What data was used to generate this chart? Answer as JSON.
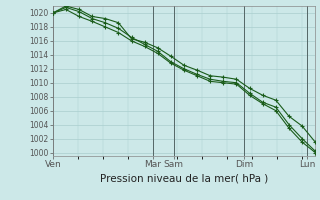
{
  "title": "",
  "xlabel": "Pression niveau de la mer( hPa )",
  "ylabel": "",
  "bg_color": "#cce8e8",
  "grid_color": "#aacece",
  "line_color": "#1a5c1a",
  "vline_color": "#556666",
  "ylim": [
    999.5,
    1021
  ],
  "yticks": [
    1000,
    1002,
    1004,
    1006,
    1008,
    1010,
    1012,
    1014,
    1016,
    1018,
    1020
  ],
  "xtick_labels": [
    "Ven",
    "Mar",
    "Sam",
    "Dim",
    "Lun"
  ],
  "xtick_positions": [
    0.0,
    0.38,
    0.46,
    0.73,
    0.97
  ],
  "vline_positions": [
    0.0,
    0.38,
    0.46,
    0.73,
    0.97
  ],
  "n_points": 21,
  "series": [
    [
      1020.0,
      1021.0,
      1020.5,
      1019.5,
      1019.2,
      1018.6,
      1016.3,
      1015.8,
      1015.0,
      1013.8,
      1012.5,
      1011.8,
      1011.0,
      1010.8,
      1010.5,
      1009.2,
      1008.2,
      1007.5,
      1005.2,
      1003.8,
      1001.5
    ],
    [
      1020.0,
      1020.8,
      1020.2,
      1019.2,
      1018.6,
      1017.8,
      1016.5,
      1015.5,
      1014.5,
      1013.0,
      1012.0,
      1011.2,
      1010.5,
      1010.2,
      1010.0,
      1008.5,
      1007.2,
      1006.5,
      1004.0,
      1002.0,
      1000.2
    ],
    [
      1020.0,
      1020.5,
      1019.5,
      1018.8,
      1018.0,
      1017.2,
      1016.0,
      1015.2,
      1014.2,
      1012.8,
      1011.8,
      1011.0,
      1010.2,
      1010.0,
      1009.8,
      1008.2,
      1007.0,
      1006.0,
      1003.5,
      1001.5,
      1000.0
    ]
  ]
}
